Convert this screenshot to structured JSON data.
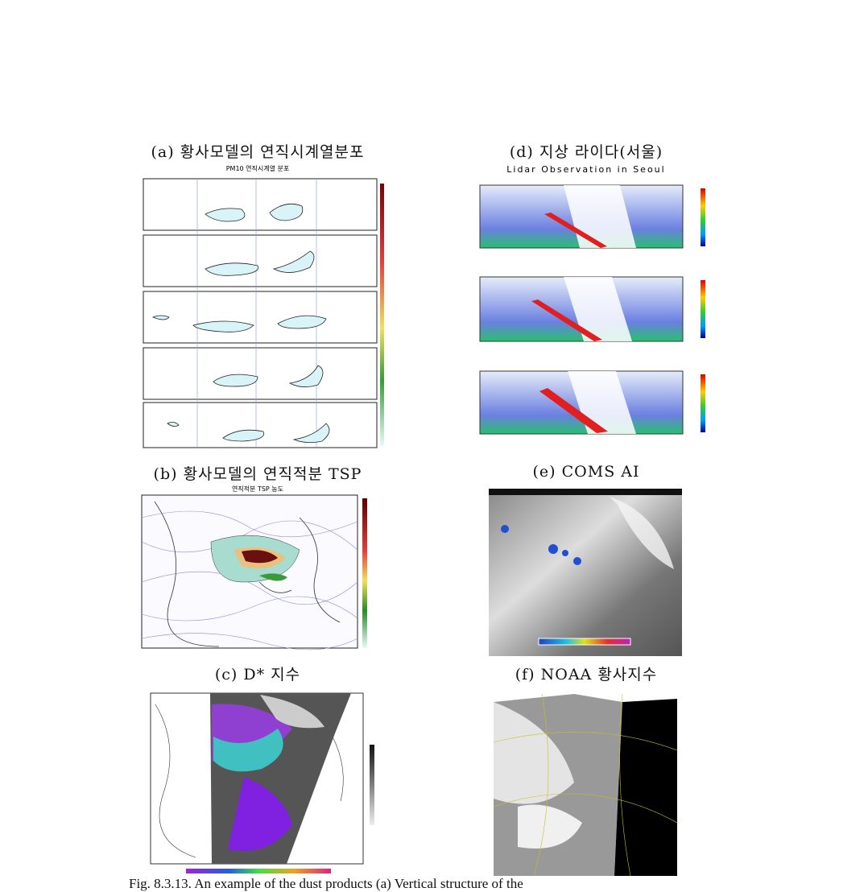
{
  "panels": [
    {
      "caption": "(a) 황사모델의 연직시계열분포",
      "inner_title": "PM10 연직시계열 분포"
    },
    {
      "caption": "(d) 지상 라이다(서울)",
      "inner_title": "Lidar Observation in Seoul"
    },
    {
      "caption": "(b) 황사모델의 연직적분 TSP",
      "inner_title": "연직적분 TSP 농도"
    },
    {
      "caption": "(e) COMS AI"
    },
    {
      "caption": "(c) D* 지수"
    },
    {
      "caption": "(f) NOAA 황사지수"
    }
  ],
  "figure_caption": "Fig. 8.3.13. An example of the dust products (a) Vertical structure of the"
}
